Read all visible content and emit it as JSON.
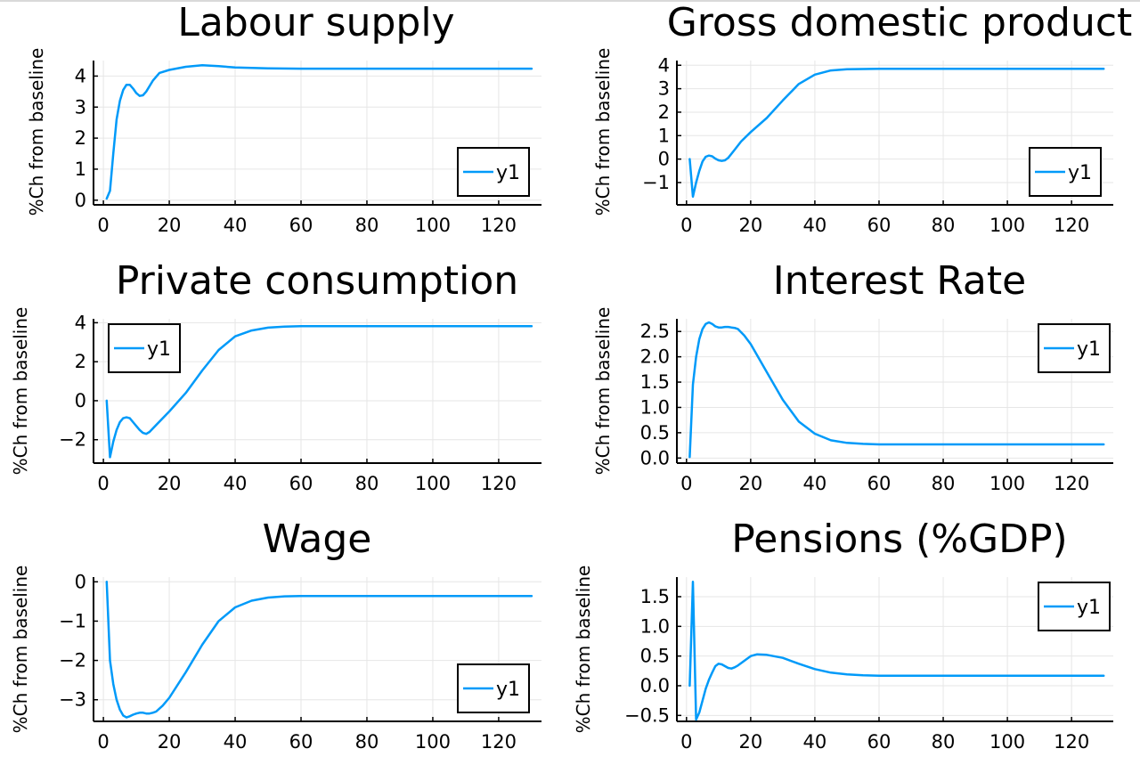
{
  "colors": {
    "series": "#009AF9",
    "grid": "#e6e6e6",
    "axis": "#000000"
  },
  "chart_data": [
    {
      "type": "line",
      "title": "Labour supply",
      "ylabel": "%Ch from baseline",
      "xlim": [
        -3,
        133
      ],
      "ylim": [
        -0.15,
        4.5
      ],
      "xticks": [
        0,
        20,
        40,
        60,
        80,
        100,
        120
      ],
      "yticks": [
        0,
        1,
        2,
        3,
        4
      ],
      "ytick_labels": [
        "0",
        "1",
        "2",
        "3",
        "4"
      ],
      "legend": "bottom-right",
      "grid": true,
      "series": [
        {
          "name": "y1",
          "x": [
            1,
            2,
            3,
            4,
            5,
            6,
            7,
            8,
            9,
            10,
            11,
            12,
            13,
            15,
            17,
            20,
            25,
            30,
            35,
            40,
            50,
            60,
            80,
            100,
            130
          ],
          "y": [
            0.05,
            0.3,
            1.5,
            2.6,
            3.2,
            3.55,
            3.72,
            3.72,
            3.6,
            3.45,
            3.36,
            3.38,
            3.5,
            3.85,
            4.1,
            4.2,
            4.3,
            4.35,
            4.32,
            4.28,
            4.25,
            4.24,
            4.24,
            4.24,
            4.24
          ]
        }
      ]
    },
    {
      "type": "line",
      "title": "Gross domestic product",
      "ylabel": "%Ch from baseline",
      "xlim": [
        -3,
        133
      ],
      "ylim": [
        -1.95,
        4.2
      ],
      "xticks": [
        0,
        20,
        40,
        60,
        80,
        100,
        120
      ],
      "yticks": [
        -1,
        0,
        1,
        2,
        3,
        4
      ],
      "ytick_labels": [
        "−1",
        "0",
        "1",
        "2",
        "3",
        "4"
      ],
      "legend": "bottom-right",
      "grid": true,
      "series": [
        {
          "name": "y1",
          "x": [
            1,
            2,
            3,
            4,
            5,
            6,
            7,
            8,
            9,
            10,
            11,
            12,
            13,
            15,
            17,
            20,
            25,
            30,
            35,
            40,
            45,
            50,
            60,
            80,
            100,
            130
          ],
          "y": [
            0,
            -1.6,
            -1.0,
            -0.5,
            -0.1,
            0.1,
            0.15,
            0.12,
            0.02,
            -0.05,
            -0.08,
            -0.05,
            0.05,
            0.4,
            0.75,
            1.15,
            1.75,
            2.5,
            3.2,
            3.6,
            3.78,
            3.83,
            3.85,
            3.85,
            3.85,
            3.85
          ]
        }
      ]
    },
    {
      "type": "line",
      "title": "Private consumption",
      "ylabel": "%Ch from baseline",
      "xlim": [
        -3,
        133
      ],
      "ylim": [
        -3.2,
        4.2
      ],
      "xticks": [
        0,
        20,
        40,
        60,
        80,
        100,
        120
      ],
      "yticks": [
        -2,
        0,
        2,
        4
      ],
      "ytick_labels": [
        "−2",
        "0",
        "2",
        "4"
      ],
      "legend": "top-left",
      "grid": true,
      "series": [
        {
          "name": "y1",
          "x": [
            1,
            2,
            3,
            4,
            5,
            6,
            7,
            8,
            9,
            10,
            11,
            12,
            13,
            14,
            16,
            18,
            20,
            25,
            30,
            35,
            40,
            45,
            50,
            55,
            60,
            80,
            100,
            130
          ],
          "y": [
            0,
            -2.9,
            -2.1,
            -1.5,
            -1.1,
            -0.9,
            -0.85,
            -0.9,
            -1.1,
            -1.3,
            -1.5,
            -1.65,
            -1.7,
            -1.6,
            -1.25,
            -0.9,
            -0.55,
            0.4,
            1.55,
            2.6,
            3.3,
            3.6,
            3.75,
            3.8,
            3.82,
            3.82,
            3.82,
            3.82
          ]
        }
      ]
    },
    {
      "type": "line",
      "title": "Interest Rate",
      "ylabel": "%Ch from baseline",
      "xlim": [
        -3,
        133
      ],
      "ylim": [
        -0.1,
        2.75
      ],
      "xticks": [
        0,
        20,
        40,
        60,
        80,
        100,
        120
      ],
      "yticks": [
        0,
        0.5,
        1.0,
        1.5,
        2.0,
        2.5
      ],
      "ytick_labels": [
        "0.0",
        "0.5",
        "1.0",
        "1.5",
        "2.0",
        "2.5"
      ],
      "legend": "top-right",
      "grid": true,
      "series": [
        {
          "name": "y1",
          "x": [
            1,
            2,
            3,
            4,
            5,
            6,
            7,
            8,
            9,
            10,
            11,
            12,
            13,
            14,
            15,
            16,
            18,
            20,
            25,
            30,
            35,
            40,
            45,
            50,
            55,
            60,
            80,
            100,
            130
          ],
          "y": [
            0.02,
            1.45,
            2.0,
            2.35,
            2.55,
            2.65,
            2.68,
            2.65,
            2.6,
            2.58,
            2.58,
            2.59,
            2.59,
            2.58,
            2.57,
            2.55,
            2.42,
            2.25,
            1.7,
            1.15,
            0.72,
            0.48,
            0.35,
            0.3,
            0.28,
            0.27,
            0.27,
            0.27,
            0.27
          ]
        }
      ]
    },
    {
      "type": "line",
      "title": "Wage",
      "ylabel": "%Ch from baseline",
      "xlim": [
        -3,
        133
      ],
      "ylim": [
        -3.55,
        0.12
      ],
      "xticks": [
        0,
        20,
        40,
        60,
        80,
        100,
        120
      ],
      "yticks": [
        -3,
        -2,
        -1,
        0
      ],
      "ytick_labels": [
        "−3",
        "−2",
        "−1",
        "0"
      ],
      "legend": "bottom-right",
      "grid": true,
      "series": [
        {
          "name": "y1",
          "x": [
            1,
            2,
            3,
            4,
            5,
            6,
            7,
            8,
            9,
            10,
            11,
            12,
            13,
            14,
            15,
            16,
            18,
            20,
            25,
            30,
            35,
            40,
            45,
            50,
            55,
            60,
            80,
            100,
            130
          ],
          "y": [
            0,
            -2.0,
            -2.6,
            -3.0,
            -3.25,
            -3.4,
            -3.45,
            -3.42,
            -3.38,
            -3.35,
            -3.33,
            -3.33,
            -3.35,
            -3.35,
            -3.33,
            -3.3,
            -3.15,
            -2.95,
            -2.3,
            -1.6,
            -1.0,
            -0.65,
            -0.48,
            -0.4,
            -0.37,
            -0.36,
            -0.36,
            -0.36,
            -0.36
          ]
        }
      ]
    },
    {
      "type": "line",
      "title": "Pensions (%GDP)",
      "ylabel": "%Ch from baseline",
      "xlim": [
        -3,
        133
      ],
      "ylim": [
        -0.6,
        1.83
      ],
      "xticks": [
        0,
        20,
        40,
        60,
        80,
        100,
        120
      ],
      "yticks": [
        -0.5,
        0,
        0.5,
        1.0,
        1.5
      ],
      "ytick_labels": [
        "−0.5",
        "0.0",
        "0.5",
        "1.0",
        "1.5"
      ],
      "legend": "top-right",
      "grid": true,
      "series": [
        {
          "name": "y1",
          "x": [
            1,
            2,
            3,
            4,
            5,
            6,
            7,
            8,
            9,
            10,
            11,
            12,
            13,
            14,
            15,
            16,
            18,
            20,
            22,
            25,
            30,
            35,
            40,
            45,
            50,
            55,
            60,
            80,
            100,
            130
          ],
          "y": [
            0,
            1.75,
            -0.57,
            -0.45,
            -0.25,
            -0.05,
            0.1,
            0.22,
            0.33,
            0.37,
            0.36,
            0.33,
            0.3,
            0.29,
            0.31,
            0.34,
            0.42,
            0.5,
            0.53,
            0.52,
            0.47,
            0.37,
            0.28,
            0.22,
            0.19,
            0.175,
            0.17,
            0.17,
            0.17,
            0.17
          ]
        }
      ]
    }
  ]
}
